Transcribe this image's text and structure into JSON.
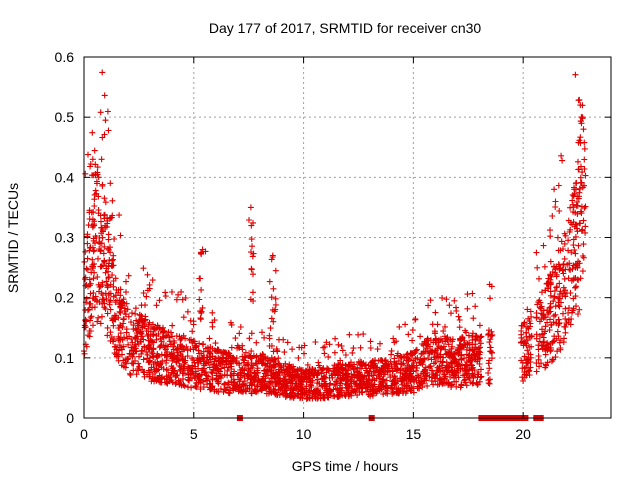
{
  "chart_data": {
    "type": "scatter",
    "title": "Day 177 of 2017, SRMTID for receiver cn30",
    "xlabel": "GPS time / hours",
    "ylabel": "SRMTID / TECUs",
    "xlim": [
      0,
      24
    ],
    "ylim": [
      0,
      0.6
    ],
    "xticks": [
      0,
      5,
      10,
      15,
      20
    ],
    "yticks": [
      0,
      0.1,
      0.2,
      0.3,
      0.4,
      0.5,
      0.6
    ],
    "xtick_labels": [
      "0",
      "5",
      "10",
      "15",
      "20"
    ],
    "ytick_labels": [
      "0",
      "0.1",
      "0.2",
      "0.3",
      "0.4",
      "0.5",
      "0.6"
    ],
    "grid": true,
    "marker": "+",
    "color": "#e00000",
    "series": [
      {
        "name": "SRMTID",
        "segments": [
          {
            "t_start": 0.0,
            "t_end": 18.1
          },
          {
            "t_start": 18.4,
            "t_end": 18.6
          },
          {
            "t_start": 19.9,
            "t_end": 20.4
          },
          {
            "t_start": 20.6,
            "t_end": 22.8
          }
        ],
        "trend_hours": [
          0,
          0.5,
          1.0,
          1.5,
          2.0,
          3,
          4,
          5,
          6,
          7,
          8,
          9,
          10,
          11,
          12,
          13,
          14,
          15,
          16,
          17,
          18,
          20,
          21,
          22,
          22.5,
          22.8
        ],
        "trend_values": [
          0.18,
          0.3,
          0.25,
          0.16,
          0.13,
          0.11,
          0.1,
          0.09,
          0.08,
          0.07,
          0.075,
          0.065,
          0.055,
          0.06,
          0.065,
          0.065,
          0.07,
          0.075,
          0.1,
          0.09,
          0.1,
          0.11,
          0.15,
          0.22,
          0.3,
          0.42
        ],
        "peaks": [
          {
            "x": 0.4,
            "y": 0.43
          },
          {
            "x": 0.8,
            "y": 0.43
          },
          {
            "x": 1.2,
            "y": 0.39
          },
          {
            "x": 5.4,
            "y": 0.28
          },
          {
            "x": 7.6,
            "y": 0.35
          },
          {
            "x": 8.6,
            "y": 0.27
          },
          {
            "x": 22.4,
            "y": 0.39
          },
          {
            "x": 22.6,
            "y": 0.52
          },
          {
            "x": 22.7,
            "y": 0.5
          }
        ]
      }
    ],
    "zero_markers": [
      7.1,
      13.1,
      18.1,
      18.3,
      18.6,
      18.9,
      19.2,
      19.5,
      19.8,
      20.1,
      20.6,
      20.8
    ]
  }
}
